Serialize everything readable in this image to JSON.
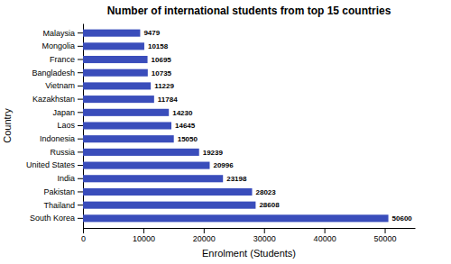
{
  "chart_data": {
    "type": "bar",
    "orientation": "horizontal",
    "title": "Number of international students from top 15 countries",
    "xlabel": "Enrolment (Students)",
    "ylabel": "Country",
    "categories": [
      "South Korea",
      "Thailand",
      "Pakistan",
      "India",
      "United States",
      "Russia",
      "Indonesia",
      "Laos",
      "Japan",
      "Kazakhstan",
      "Vietnam",
      "Bangladesh",
      "France",
      "Mongolia",
      "Malaysia"
    ],
    "values": [
      50600,
      28608,
      28023,
      23198,
      20996,
      19239,
      15050,
      14645,
      14230,
      11784,
      11229,
      10735,
      10695,
      10158,
      9479
    ],
    "color": "#3A4DBB",
    "xlim": [
      0,
      55000
    ],
    "xticks": [
      0,
      10000,
      20000,
      30000,
      40000,
      50000
    ],
    "data_labels": true
  }
}
